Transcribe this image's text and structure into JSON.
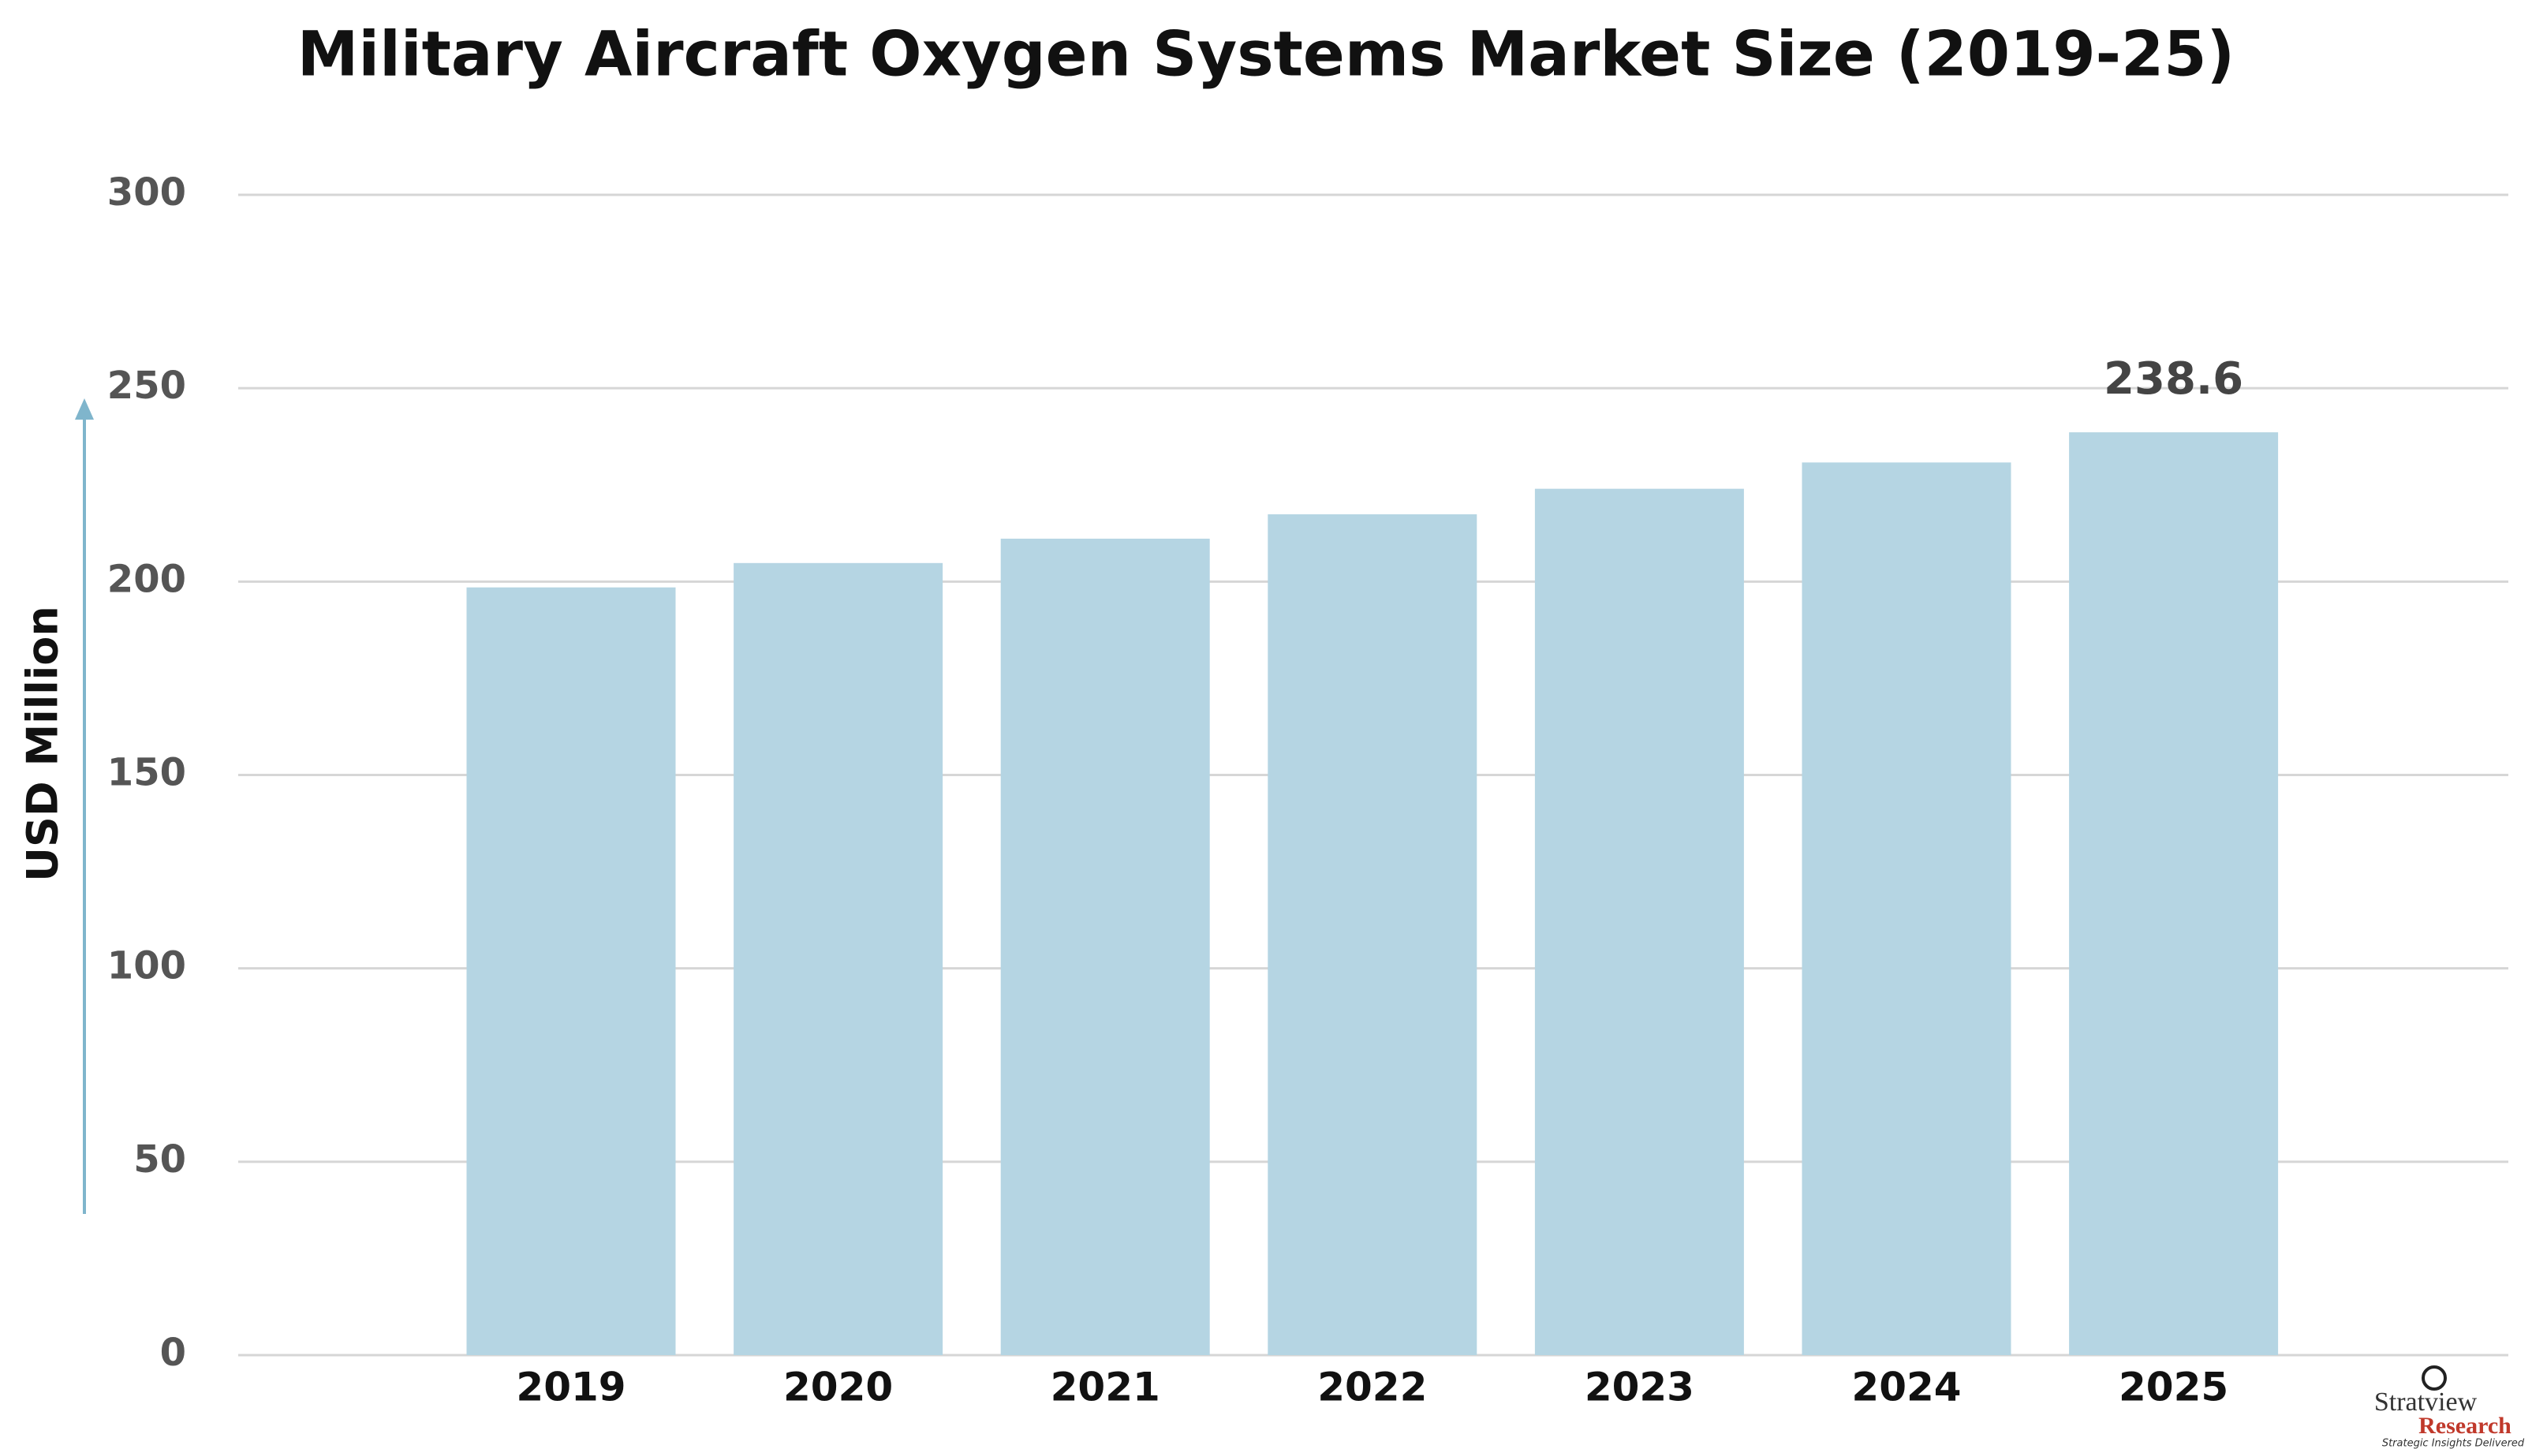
{
  "chart_data": {
    "type": "bar",
    "title": "Military Aircraft Oxygen Systems Market Size (2019-25)",
    "y_label": "USD Million",
    "categories": [
      "2019",
      "2020",
      "2021",
      "2022",
      "2023",
      "2024",
      "2025"
    ],
    "values": [
      198.5,
      204.8,
      211.1,
      217.4,
      224.0,
      230.8,
      238.6
    ],
    "value_labels": [
      null,
      null,
      null,
      null,
      null,
      null,
      "238.6"
    ],
    "color": "#b5d5e3",
    "ylim": [
      0,
      300
    ],
    "yticks": [
      0,
      50,
      100,
      150,
      200,
      250,
      300
    ],
    "grid": true
  },
  "logo": {
    "name": "Stratview",
    "sub": "Research",
    "tagline": "Strategic Insights Delivered"
  }
}
